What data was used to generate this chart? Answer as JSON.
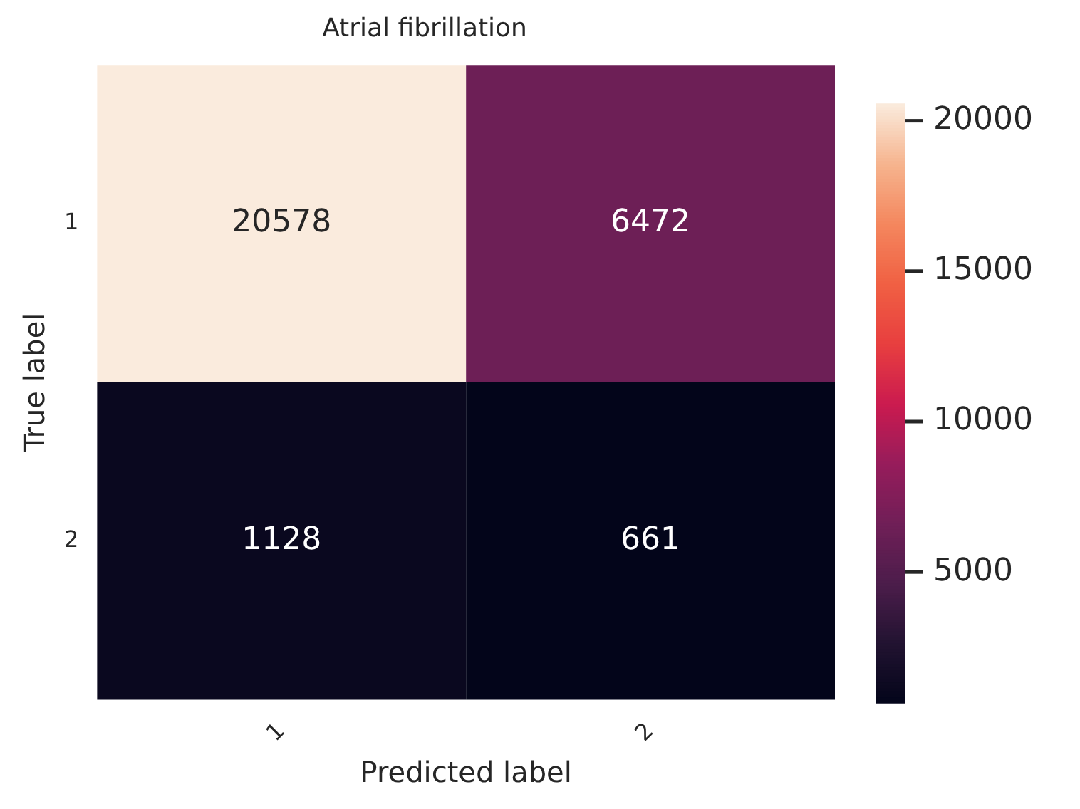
{
  "chart_data": {
    "type": "heatmap",
    "title": "Atrial fibrillation",
    "xlabel": "Predicted label",
    "ylabel": "True label",
    "categories": [
      "1",
      "2"
    ],
    "y_categories": [
      "1",
      "2"
    ],
    "cells": [
      [
        20578,
        6472
      ],
      [
        1128,
        661
      ]
    ],
    "clim": [
      661,
      20578
    ],
    "cticks": [
      5000,
      10000,
      15000,
      20000
    ],
    "data_labels": true
  }
}
